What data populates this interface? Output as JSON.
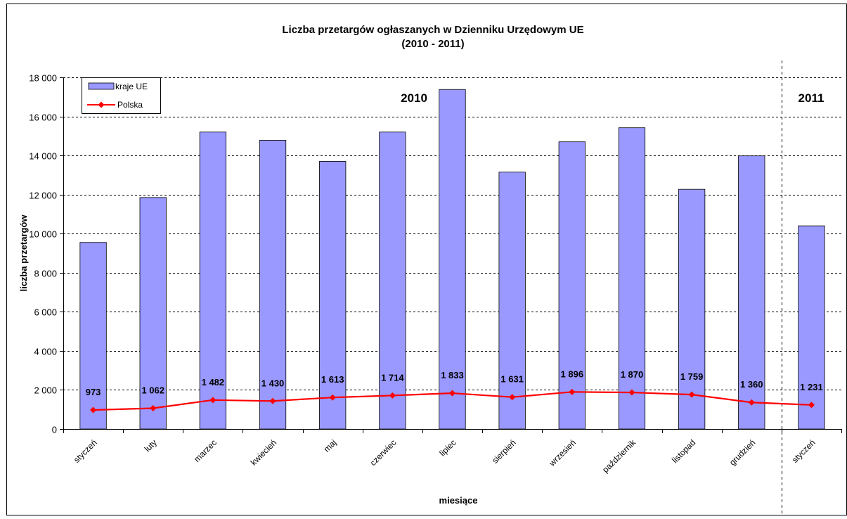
{
  "chart_data": {
    "type": "bar",
    "title": "Liczba przetargów ogłaszanych w Dzienniku Urzędowym UE",
    "subtitle": "(2010 - 2011)",
    "xlabel": "miesiące",
    "ylabel": "liczba przetargów",
    "ylim": [
      0,
      18000
    ],
    "yticks": [
      "0",
      "2 000",
      "4 000",
      "6 000",
      "8 000",
      "10 000",
      "12 000",
      "14 000",
      "16 000",
      "18 000"
    ],
    "grid": true,
    "legend_position": "top-left",
    "categories": [
      "styczeń",
      "luty",
      "marzec",
      "kwiecień",
      "maj",
      "czerwiec",
      "lipiec",
      "sierpień",
      "wrzesień",
      "październik",
      "listopad",
      "grudzień",
      "styczeń"
    ],
    "year_labels": [
      "2010",
      "2011"
    ],
    "series": [
      {
        "name": "kraje UE",
        "type": "bar",
        "color": "#9999ff",
        "values": [
          9550,
          11850,
          15200,
          14780,
          13700,
          15200,
          17380,
          13150,
          14700,
          15420,
          12270,
          13980,
          10400
        ]
      },
      {
        "name": "Polska",
        "type": "line",
        "color": "#ff0000",
        "values": [
          973,
          1062,
          1482,
          1430,
          1613,
          1714,
          1833,
          1631,
          1896,
          1870,
          1759,
          1360,
          1231
        ],
        "labels": [
          "973",
          "1 062",
          "1 482",
          "1 430",
          "1 613",
          "1 714",
          "1 833",
          "1 631",
          "1 896",
          "1 870",
          "1 759",
          "1 360",
          "1 231"
        ]
      }
    ]
  }
}
